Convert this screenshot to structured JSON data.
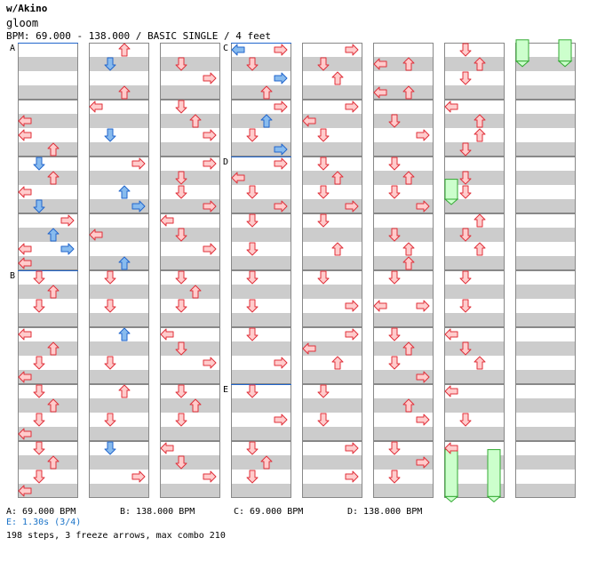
{
  "header": {
    "artist": "w/Akino",
    "title": "gloom",
    "bpm_line": "BPM: 69.000 - 138.000 / BASIC SINGLE / 4 feet"
  },
  "sections": [
    {
      "label": "A",
      "column": 0,
      "measure": 0
    },
    {
      "label": "B",
      "column": 0,
      "measure": 4
    },
    {
      "label": "C",
      "column": 3,
      "measure": 0
    },
    {
      "label": "D",
      "column": 3,
      "measure": 2
    },
    {
      "label": "E",
      "column": 3,
      "measure": 6
    }
  ],
  "legend": {
    "a": "A: 69.000 BPM",
    "b": "B: 138.000 BPM",
    "c": "C: 69.000 BPM",
    "d": "D: 138.000 BPM",
    "e": "E: 1.30s (3/4)"
  },
  "summary": "198 steps, 3 freeze arrows, max combo 210",
  "colors": {
    "stripe": "#cccccc",
    "border": "#888888",
    "red_fill": "#ffcccc",
    "red_stroke": "#e0303a",
    "blue_fill": "#88bbee",
    "blue_stroke": "#2266cc",
    "freeze_fill": "#ccffcc",
    "freeze_stroke": "#33aa33",
    "marker_line": "#2266cc",
    "stop_text": "#1a73c8"
  },
  "arrows": [
    {
      "c": 0,
      "r": 5,
      "d": "L",
      "k": "r"
    },
    {
      "c": 0,
      "r": 6,
      "d": "L",
      "k": "r"
    },
    {
      "c": 0,
      "r": 7,
      "d": "U",
      "k": "r"
    },
    {
      "c": 0,
      "r": 8,
      "d": "D",
      "k": "b"
    },
    {
      "c": 0,
      "r": 9,
      "d": "U",
      "k": "r"
    },
    {
      "c": 0,
      "r": 10,
      "d": "L",
      "k": "r"
    },
    {
      "c": 0,
      "r": 11,
      "d": "D",
      "k": "b"
    },
    {
      "c": 0,
      "r": 12,
      "d": "R",
      "k": "r"
    },
    {
      "c": 0,
      "r": 13,
      "d": "U",
      "k": "b"
    },
    {
      "c": 0,
      "r": 14,
      "d": "L",
      "k": "r"
    },
    {
      "c": 0,
      "r": 14,
      "d": "R",
      "k": "b"
    },
    {
      "c": 0,
      "r": 15,
      "d": "L",
      "k": "r"
    },
    {
      "c": 0,
      "r": 16,
      "d": "D",
      "k": "r"
    },
    {
      "c": 0,
      "r": 17,
      "d": "U",
      "k": "r"
    },
    {
      "c": 0,
      "r": 18,
      "d": "D",
      "k": "r"
    },
    {
      "c": 0,
      "r": 20,
      "d": "L",
      "k": "r"
    },
    {
      "c": 0,
      "r": 21,
      "d": "U",
      "k": "r"
    },
    {
      "c": 0,
      "r": 22,
      "d": "D",
      "k": "r"
    },
    {
      "c": 0,
      "r": 23,
      "d": "L",
      "k": "r"
    },
    {
      "c": 0,
      "r": 24,
      "d": "D",
      "k": "r"
    },
    {
      "c": 0,
      "r": 25,
      "d": "U",
      "k": "r"
    },
    {
      "c": 0,
      "r": 26,
      "d": "D",
      "k": "r"
    },
    {
      "c": 0,
      "r": 27,
      "d": "L",
      "k": "r"
    },
    {
      "c": 0,
      "r": 28,
      "d": "D",
      "k": "r"
    },
    {
      "c": 0,
      "r": 29,
      "d": "U",
      "k": "r"
    },
    {
      "c": 0,
      "r": 30,
      "d": "D",
      "k": "r"
    },
    {
      "c": 0,
      "r": 31,
      "d": "L",
      "k": "r"
    },
    {
      "c": 1,
      "r": 0,
      "d": "U",
      "k": "r"
    },
    {
      "c": 1,
      "r": 1,
      "d": "D",
      "k": "b"
    },
    {
      "c": 1,
      "r": 3,
      "d": "U",
      "k": "r"
    },
    {
      "c": 1,
      "r": 4,
      "d": "L",
      "k": "r"
    },
    {
      "c": 1,
      "r": 6,
      "d": "D",
      "k": "b"
    },
    {
      "c": 1,
      "r": 8,
      "d": "R",
      "k": "r"
    },
    {
      "c": 1,
      "r": 10,
      "d": "U",
      "k": "b"
    },
    {
      "c": 1,
      "r": 11,
      "d": "R",
      "k": "b"
    },
    {
      "c": 1,
      "r": 13,
      "d": "L",
      "k": "r"
    },
    {
      "c": 1,
      "r": 15,
      "d": "U",
      "k": "b"
    },
    {
      "c": 1,
      "r": 16,
      "d": "D",
      "k": "r"
    },
    {
      "c": 1,
      "r": 18,
      "d": "D",
      "k": "r"
    },
    {
      "c": 1,
      "r": 20,
      "d": "U",
      "k": "b"
    },
    {
      "c": 1,
      "r": 22,
      "d": "D",
      "k": "r"
    },
    {
      "c": 1,
      "r": 24,
      "d": "U",
      "k": "r"
    },
    {
      "c": 1,
      "r": 26,
      "d": "D",
      "k": "r"
    },
    {
      "c": 1,
      "r": 28,
      "d": "D",
      "k": "b"
    },
    {
      "c": 1,
      "r": 30,
      "d": "R",
      "k": "r"
    },
    {
      "c": 2,
      "r": 1,
      "d": "D",
      "k": "r"
    },
    {
      "c": 2,
      "r": 2,
      "d": "R",
      "k": "r"
    },
    {
      "c": 2,
      "r": 4,
      "d": "D",
      "k": "r"
    },
    {
      "c": 2,
      "r": 5,
      "d": "U",
      "k": "r"
    },
    {
      "c": 2,
      "r": 6,
      "d": "R",
      "k": "r"
    },
    {
      "c": 2,
      "r": 8,
      "d": "R",
      "k": "r"
    },
    {
      "c": 2,
      "r": 9,
      "d": "D",
      "k": "r"
    },
    {
      "c": 2,
      "r": 10,
      "d": "D",
      "k": "r"
    },
    {
      "c": 2,
      "r": 11,
      "d": "R",
      "k": "r"
    },
    {
      "c": 2,
      "r": 12,
      "d": "L",
      "k": "r"
    },
    {
      "c": 2,
      "r": 13,
      "d": "D",
      "k": "r"
    },
    {
      "c": 2,
      "r": 14,
      "d": "R",
      "k": "r"
    },
    {
      "c": 2,
      "r": 16,
      "d": "D",
      "k": "r"
    },
    {
      "c": 2,
      "r": 17,
      "d": "U",
      "k": "r"
    },
    {
      "c": 2,
      "r": 18,
      "d": "D",
      "k": "r"
    },
    {
      "c": 2,
      "r": 20,
      "d": "L",
      "k": "r"
    },
    {
      "c": 2,
      "r": 21,
      "d": "D",
      "k": "r"
    },
    {
      "c": 2,
      "r": 22,
      "d": "R",
      "k": "r"
    },
    {
      "c": 2,
      "r": 24,
      "d": "D",
      "k": "r"
    },
    {
      "c": 2,
      "r": 25,
      "d": "U",
      "k": "r"
    },
    {
      "c": 2,
      "r": 26,
      "d": "D",
      "k": "r"
    },
    {
      "c": 2,
      "r": 28,
      "d": "L",
      "k": "r"
    },
    {
      "c": 2,
      "r": 29,
      "d": "D",
      "k": "r"
    },
    {
      "c": 2,
      "r": 30,
      "d": "R",
      "k": "r"
    },
    {
      "c": 3,
      "r": 0,
      "d": "L",
      "k": "b"
    },
    {
      "c": 3,
      "r": 0,
      "d": "R",
      "k": "r"
    },
    {
      "c": 3,
      "r": 1,
      "d": "D",
      "k": "r"
    },
    {
      "c": 3,
      "r": 2,
      "d": "R",
      "k": "b"
    },
    {
      "c": 3,
      "r": 3,
      "d": "U",
      "k": "r"
    },
    {
      "c": 3,
      "r": 4,
      "d": "R",
      "k": "r"
    },
    {
      "c": 3,
      "r": 5,
      "d": "U",
      "k": "b"
    },
    {
      "c": 3,
      "r": 6,
      "d": "D",
      "k": "r"
    },
    {
      "c": 3,
      "r": 7,
      "d": "R",
      "k": "b"
    },
    {
      "c": 3,
      "r": 8,
      "d": "R",
      "k": "r"
    },
    {
      "c": 3,
      "r": 9,
      "d": "L",
      "k": "r"
    },
    {
      "c": 3,
      "r": 10,
      "d": "D",
      "k": "r"
    },
    {
      "c": 3,
      "r": 11,
      "d": "R",
      "k": "r"
    },
    {
      "c": 3,
      "r": 12,
      "d": "D",
      "k": "r"
    },
    {
      "c": 3,
      "r": 14,
      "d": "D",
      "k": "r"
    },
    {
      "c": 3,
      "r": 16,
      "d": "D",
      "k": "r"
    },
    {
      "c": 3,
      "r": 18,
      "d": "D",
      "k": "r"
    },
    {
      "c": 3,
      "r": 20,
      "d": "D",
      "k": "r"
    },
    {
      "c": 3,
      "r": 22,
      "d": "R",
      "k": "r"
    },
    {
      "c": 3,
      "r": 24,
      "d": "D",
      "k": "r"
    },
    {
      "c": 3,
      "r": 26,
      "d": "R",
      "k": "r"
    },
    {
      "c": 3,
      "r": 28,
      "d": "D",
      "k": "r"
    },
    {
      "c": 3,
      "r": 29,
      "d": "U",
      "k": "r"
    },
    {
      "c": 3,
      "r": 30,
      "d": "D",
      "k": "r"
    },
    {
      "c": 4,
      "r": 0,
      "d": "R",
      "k": "r"
    },
    {
      "c": 4,
      "r": 1,
      "d": "D",
      "k": "r"
    },
    {
      "c": 4,
      "r": 2,
      "d": "U",
      "k": "r"
    },
    {
      "c": 4,
      "r": 4,
      "d": "R",
      "k": "r"
    },
    {
      "c": 4,
      "r": 5,
      "d": "L",
      "k": "r"
    },
    {
      "c": 4,
      "r": 6,
      "d": "D",
      "k": "r"
    },
    {
      "c": 4,
      "r": 8,
      "d": "D",
      "k": "r"
    },
    {
      "c": 4,
      "r": 9,
      "d": "U",
      "k": "r"
    },
    {
      "c": 4,
      "r": 10,
      "d": "D",
      "k": "r"
    },
    {
      "c": 4,
      "r": 11,
      "d": "R",
      "k": "r"
    },
    {
      "c": 4,
      "r": 12,
      "d": "D",
      "k": "r"
    },
    {
      "c": 4,
      "r": 14,
      "d": "U",
      "k": "r"
    },
    {
      "c": 4,
      "r": 16,
      "d": "D",
      "k": "r"
    },
    {
      "c": 4,
      "r": 18,
      "d": "R",
      "k": "r"
    },
    {
      "c": 4,
      "r": 20,
      "d": "R",
      "k": "r"
    },
    {
      "c": 4,
      "r": 21,
      "d": "L",
      "k": "r"
    },
    {
      "c": 4,
      "r": 22,
      "d": "U",
      "k": "r"
    },
    {
      "c": 4,
      "r": 24,
      "d": "D",
      "k": "r"
    },
    {
      "c": 4,
      "r": 26,
      "d": "D",
      "k": "r"
    },
    {
      "c": 4,
      "r": 28,
      "d": "R",
      "k": "r"
    },
    {
      "c": 4,
      "r": 30,
      "d": "R",
      "k": "r"
    },
    {
      "c": 5,
      "r": 1,
      "d": "L",
      "k": "r"
    },
    {
      "c": 5,
      "r": 1,
      "d": "U",
      "k": "r"
    },
    {
      "c": 5,
      "r": 3,
      "d": "L",
      "k": "r"
    },
    {
      "c": 5,
      "r": 3,
      "d": "U",
      "k": "r"
    },
    {
      "c": 5,
      "r": 5,
      "d": "D",
      "k": "r"
    },
    {
      "c": 5,
      "r": 6,
      "d": "R",
      "k": "r"
    },
    {
      "c": 5,
      "r": 8,
      "d": "D",
      "k": "r"
    },
    {
      "c": 5,
      "r": 9,
      "d": "U",
      "k": "r"
    },
    {
      "c": 5,
      "r": 10,
      "d": "D",
      "k": "r"
    },
    {
      "c": 5,
      "r": 11,
      "d": "R",
      "k": "r"
    },
    {
      "c": 5,
      "r": 13,
      "d": "D",
      "k": "r"
    },
    {
      "c": 5,
      "r": 14,
      "d": "U",
      "k": "r"
    },
    {
      "c": 5,
      "r": 15,
      "d": "U",
      "k": "r"
    },
    {
      "c": 5,
      "r": 16,
      "d": "D",
      "k": "r"
    },
    {
      "c": 5,
      "r": 18,
      "d": "L",
      "k": "r"
    },
    {
      "c": 5,
      "r": 18,
      "d": "R",
      "k": "r"
    },
    {
      "c": 5,
      "r": 20,
      "d": "D",
      "k": "r"
    },
    {
      "c": 5,
      "r": 21,
      "d": "U",
      "k": "r"
    },
    {
      "c": 5,
      "r": 22,
      "d": "D",
      "k": "r"
    },
    {
      "c": 5,
      "r": 23,
      "d": "R",
      "k": "r"
    },
    {
      "c": 5,
      "r": 25,
      "d": "U",
      "k": "r"
    },
    {
      "c": 5,
      "r": 26,
      "d": "R",
      "k": "r"
    },
    {
      "c": 5,
      "r": 28,
      "d": "D",
      "k": "r"
    },
    {
      "c": 5,
      "r": 29,
      "d": "R",
      "k": "r"
    },
    {
      "c": 5,
      "r": 30,
      "d": "D",
      "k": "r"
    },
    {
      "c": 6,
      "r": 0,
      "d": "D",
      "k": "r"
    },
    {
      "c": 6,
      "r": 1,
      "d": "U",
      "k": "r"
    },
    {
      "c": 6,
      "r": 2,
      "d": "D",
      "k": "r"
    },
    {
      "c": 6,
      "r": 4,
      "d": "L",
      "k": "r"
    },
    {
      "c": 6,
      "r": 5,
      "d": "U",
      "k": "r"
    },
    {
      "c": 6,
      "r": 6,
      "d": "U",
      "k": "r"
    },
    {
      "c": 6,
      "r": 7,
      "d": "D",
      "k": "r"
    },
    {
      "c": 6,
      "r": 9,
      "d": "D",
      "k": "r"
    },
    {
      "c": 6,
      "r": 10,
      "d": "D",
      "k": "r"
    },
    {
      "c": 6,
      "r": 12,
      "d": "U",
      "k": "r"
    },
    {
      "c": 6,
      "r": 13,
      "d": "D",
      "k": "r"
    },
    {
      "c": 6,
      "r": 14,
      "d": "U",
      "k": "r"
    },
    {
      "c": 6,
      "r": 16,
      "d": "D",
      "k": "r"
    },
    {
      "c": 6,
      "r": 18,
      "d": "D",
      "k": "r"
    },
    {
      "c": 6,
      "r": 20,
      "d": "L",
      "k": "r"
    },
    {
      "c": 6,
      "r": 21,
      "d": "D",
      "k": "r"
    },
    {
      "c": 6,
      "r": 22,
      "d": "U",
      "k": "r"
    },
    {
      "c": 6,
      "r": 24,
      "d": "L",
      "k": "r"
    },
    {
      "c": 6,
      "r": 26,
      "d": "D",
      "k": "r"
    },
    {
      "c": 6,
      "r": 28,
      "d": "L",
      "k": "r"
    }
  ],
  "freezes": [
    {
      "c": 6,
      "lane": 0,
      "r0": 9.6,
      "r1": 11.0
    },
    {
      "c": 7,
      "lane": 0,
      "r0": -0.2,
      "r1": 1.3
    },
    {
      "c": 7,
      "lane": 3,
      "r0": -0.2,
      "r1": 1.3
    },
    {
      "c": 6,
      "lane": 0,
      "r0": 28.6,
      "r1": 31.9
    },
    {
      "c": 6,
      "lane": 3,
      "r0": 28.6,
      "r1": 31.9
    }
  ]
}
